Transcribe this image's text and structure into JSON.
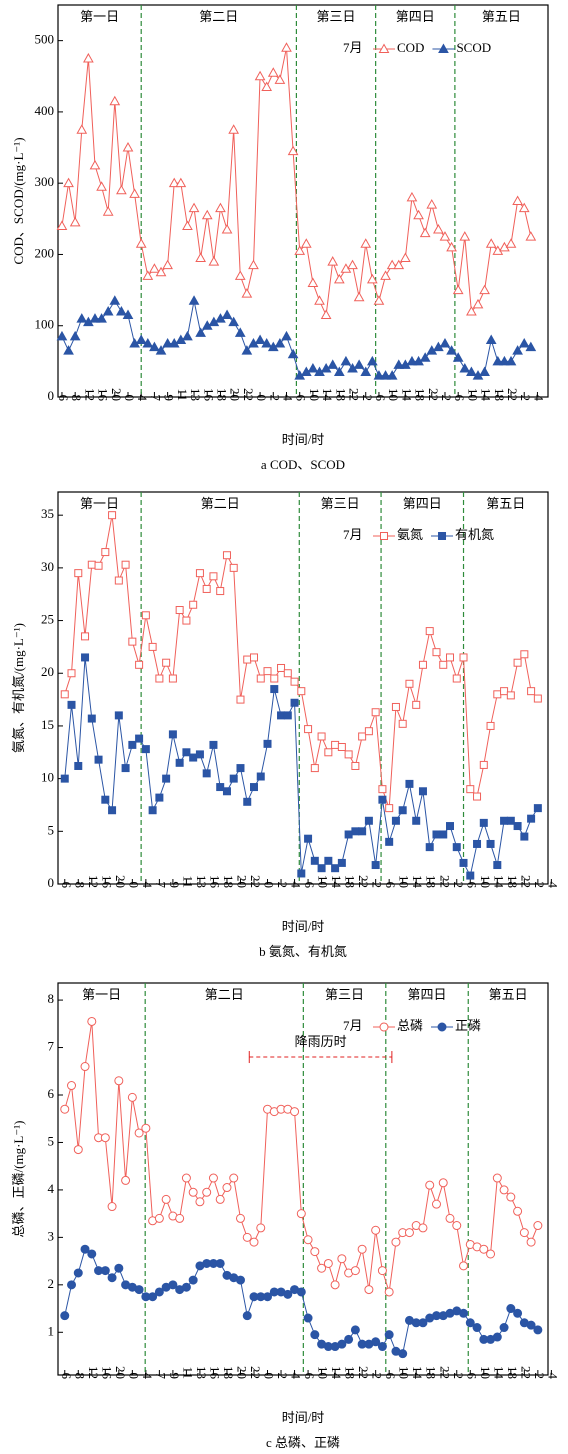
{
  "chart_data": [
    {
      "type": "line",
      "caption": "a COD、SCOD",
      "xlabel": "时间/时",
      "ylabel": "COD、SCOD/(mg·L⁻¹)",
      "legend": "upper right",
      "legend_title": "7月",
      "xlim": [
        -0.6,
        73.6
      ],
      "ylim": [
        0,
        550
      ],
      "yticks": [
        0,
        100,
        200,
        300,
        400,
        500
      ],
      "xticks": [
        {
          "value": 0,
          "label": "6"
        },
        {
          "value": 2,
          "label": "8"
        },
        {
          "value": 4,
          "label": "12"
        },
        {
          "value": 6,
          "label": "16"
        },
        {
          "value": 8,
          "label": "20"
        },
        {
          "value": 10,
          "label": "0"
        },
        {
          "value": 12,
          "label": "4"
        },
        {
          "value": 14,
          "label": "7"
        },
        {
          "value": 16,
          "label": "9"
        },
        {
          "value": 18,
          "label": "11"
        },
        {
          "value": 20,
          "label": "13"
        },
        {
          "value": 22,
          "label": "16"
        },
        {
          "value": 24,
          "label": "18"
        },
        {
          "value": 26,
          "label": "20"
        },
        {
          "value": 28,
          "label": "22"
        },
        {
          "value": 30,
          "label": "0"
        },
        {
          "value": 32,
          "label": "2"
        },
        {
          "value": 34,
          "label": "4"
        },
        {
          "value": 36,
          "label": "6"
        },
        {
          "value": 38,
          "label": "10"
        },
        {
          "value": 40,
          "label": "14"
        },
        {
          "value": 42,
          "label": "18"
        },
        {
          "value": 44,
          "label": "22"
        },
        {
          "value": 46,
          "label": "2"
        },
        {
          "value": 48,
          "label": "6"
        },
        {
          "value": 50,
          "label": "10"
        },
        {
          "value": 52,
          "label": "14"
        },
        {
          "value": 54,
          "label": "18"
        },
        {
          "value": 56,
          "label": "22"
        },
        {
          "value": 58,
          "label": "2"
        },
        {
          "value": 60,
          "label": "6"
        },
        {
          "value": 62,
          "label": "10"
        },
        {
          "value": 64,
          "label": "14"
        },
        {
          "value": 66,
          "label": "18"
        },
        {
          "value": 68,
          "label": "22"
        },
        {
          "value": 70,
          "label": "2"
        },
        {
          "value": 72,
          "label": "4"
        }
      ],
      "day_dividers": [
        12,
        35.5,
        47.5,
        59.5
      ],
      "day_labels": [
        "第一日",
        "第二日",
        "第三日",
        "第四日",
        "第五日"
      ],
      "series": [
        {
          "name": "COD",
          "color": "#f0605a",
          "marker": "triangle",
          "filled": false,
          "values": [
            240,
            300,
            245,
            375,
            475,
            325,
            295,
            260,
            415,
            290,
            350,
            285,
            215,
            170,
            180,
            175,
            185,
            300,
            300,
            240,
            265,
            195,
            255,
            190,
            265,
            235,
            375,
            170,
            145,
            185,
            450,
            435,
            455,
            445,
            490,
            345,
            205,
            215,
            160,
            135,
            115,
            190,
            165,
            180,
            185,
            140,
            215,
            165,
            135,
            170,
            185,
            185,
            195,
            280,
            255,
            230,
            270,
            235,
            225,
            210,
            150,
            225,
            120,
            130,
            150,
            215,
            205,
            210,
            215,
            275,
            265,
            225
          ]
        },
        {
          "name": "SCOD",
          "color": "#2b55a5",
          "marker": "triangle",
          "filled": true,
          "values": [
            85,
            65,
            85,
            110,
            105,
            110,
            110,
            120,
            135,
            120,
            115,
            75,
            80,
            75,
            70,
            65,
            75,
            75,
            80,
            85,
            135,
            90,
            100,
            105,
            110,
            115,
            105,
            90,
            65,
            75,
            80,
            75,
            70,
            75,
            85,
            60,
            30,
            35,
            40,
            35,
            40,
            45,
            35,
            50,
            40,
            45,
            35,
            50,
            30,
            30,
            30,
            45,
            45,
            50,
            50,
            55,
            65,
            70,
            75,
            65,
            55,
            40,
            35,
            30,
            35,
            80,
            50,
            50,
            50,
            65,
            75,
            70
          ]
        }
      ]
    },
    {
      "type": "line",
      "caption": "b 氨氮、有机氮",
      "xlabel": "时间/时",
      "ylabel": "氨氮、有机氮/(mg·L⁻¹)",
      "legend": "upper right",
      "legend_title": "7月",
      "xlim": [
        -1,
        71.5
      ],
      "ylim": [
        0,
        37.2
      ],
      "yticks": [
        0,
        5,
        10,
        15,
        20,
        25,
        30,
        35
      ],
      "xticks": [
        {
          "value": 0,
          "label": "6"
        },
        {
          "value": 2,
          "label": "8"
        },
        {
          "value": 4,
          "label": "12"
        },
        {
          "value": 6,
          "label": "16"
        },
        {
          "value": 8,
          "label": "20"
        },
        {
          "value": 10,
          "label": "0"
        },
        {
          "value": 12,
          "label": "4"
        },
        {
          "value": 14,
          "label": "7"
        },
        {
          "value": 16,
          "label": "9"
        },
        {
          "value": 18,
          "label": "11"
        },
        {
          "value": 20,
          "label": "13"
        },
        {
          "value": 22,
          "label": "16"
        },
        {
          "value": 24,
          "label": "18"
        },
        {
          "value": 26,
          "label": "20"
        },
        {
          "value": 28,
          "label": "22"
        },
        {
          "value": 30,
          "label": "0"
        },
        {
          "value": 32,
          "label": "2"
        },
        {
          "value": 34,
          "label": "4"
        },
        {
          "value": 36,
          "label": "6"
        },
        {
          "value": 38,
          "label": "10"
        },
        {
          "value": 40,
          "label": "14"
        },
        {
          "value": 42,
          "label": "18"
        },
        {
          "value": 44,
          "label": "22"
        },
        {
          "value": 46,
          "label": "2"
        },
        {
          "value": 48,
          "label": "6"
        },
        {
          "value": 50,
          "label": "10"
        },
        {
          "value": 52,
          "label": "14"
        },
        {
          "value": 54,
          "label": "18"
        },
        {
          "value": 56,
          "label": "22"
        },
        {
          "value": 58,
          "label": "2"
        },
        {
          "value": 60,
          "label": "6"
        },
        {
          "value": 62,
          "label": "10"
        },
        {
          "value": 64,
          "label": "14"
        },
        {
          "value": 66,
          "label": "18"
        },
        {
          "value": 68,
          "label": "22"
        },
        {
          "value": 70,
          "label": "2"
        },
        {
          "value": 72,
          "label": "4"
        }
      ],
      "day_dividers": [
        11.3,
        34.7,
        46.8,
        59
      ],
      "day_labels": [
        "第一日",
        "第二日",
        "第三日",
        "第四日",
        "第五日"
      ],
      "series": [
        {
          "name": "氨氮",
          "color": "#f0605a",
          "marker": "square",
          "filled": false,
          "values": [
            18,
            20,
            29.5,
            23.5,
            30.3,
            30.2,
            31.5,
            35,
            28.8,
            30.3,
            23,
            20.8,
            25.5,
            22.5,
            19.5,
            21,
            19.5,
            26,
            25,
            26.5,
            29.5,
            28,
            29.2,
            27.8,
            31.2,
            30,
            17.5,
            21.3,
            21.5,
            19.5,
            20.2,
            19.5,
            20.5,
            20,
            19.2,
            18.3,
            14.7,
            11,
            14,
            12.5,
            13.2,
            13,
            12.3,
            11.2,
            14,
            14.5,
            16.3,
            9,
            7.2,
            16.8,
            15.2,
            19,
            17,
            20.8,
            24,
            22,
            20.8,
            21.5,
            19.5,
            21.5,
            9,
            8.3,
            11.3,
            15,
            18,
            18.3,
            17.9,
            21,
            21.8,
            18.3,
            17.6
          ]
        },
        {
          "name": "有机氮",
          "color": "#2b55a5",
          "marker": "square",
          "filled": true,
          "values": [
            10,
            17,
            11.2,
            21.5,
            15.7,
            11.8,
            8,
            7,
            16,
            11,
            13.2,
            13.8,
            12.8,
            7,
            8.2,
            10,
            14.2,
            11.5,
            12.5,
            12,
            12.3,
            10.5,
            13.2,
            9.2,
            8.8,
            10,
            11,
            7.8,
            9.2,
            10.2,
            13.3,
            18.5,
            16,
            16,
            17.2,
            1,
            4.3,
            2.2,
            1.5,
            2.2,
            1.5,
            2,
            4.7,
            5,
            5,
            6,
            1.8,
            8,
            4,
            6,
            7,
            9.5,
            6,
            8.8,
            3.5,
            4.7,
            4.7,
            5.5,
            3.5,
            2,
            0.8,
            3.8,
            5.8,
            3.8,
            1.8,
            6,
            6,
            5.5,
            4.5,
            6.2,
            7.2
          ]
        }
      ]
    },
    {
      "type": "line",
      "caption": "c 总磷、正磷",
      "xlabel": "时间/时",
      "ylabel": "总磷、正磷/(mg·L⁻¹)",
      "legend": "upper right",
      "legend_title": "7月",
      "xlim": [
        -1,
        71.5
      ],
      "ylim": [
        0.1,
        8.36
      ],
      "yticks": [
        1,
        2,
        3,
        4,
        5,
        6,
        7,
        8
      ],
      "xticks": [
        {
          "value": 0,
          "label": "6"
        },
        {
          "value": 2,
          "label": "8"
        },
        {
          "value": 4,
          "label": "12"
        },
        {
          "value": 6,
          "label": "16"
        },
        {
          "value": 8,
          "label": "20"
        },
        {
          "value": 10,
          "label": "0"
        },
        {
          "value": 12,
          "label": "4"
        },
        {
          "value": 14,
          "label": "7"
        },
        {
          "value": 16,
          "label": "9"
        },
        {
          "value": 18,
          "label": "11"
        },
        {
          "value": 20,
          "label": "13"
        },
        {
          "value": 22,
          "label": "16"
        },
        {
          "value": 24,
          "label": "18"
        },
        {
          "value": 26,
          "label": "20"
        },
        {
          "value": 28,
          "label": "22"
        },
        {
          "value": 30,
          "label": "0"
        },
        {
          "value": 32,
          "label": "2"
        },
        {
          "value": 34,
          "label": "4"
        },
        {
          "value": 36,
          "label": "6"
        },
        {
          "value": 38,
          "label": "10"
        },
        {
          "value": 40,
          "label": "14"
        },
        {
          "value": 42,
          "label": "18"
        },
        {
          "value": 44,
          "label": "22"
        },
        {
          "value": 46,
          "label": "2"
        },
        {
          "value": 48,
          "label": "6"
        },
        {
          "value": 50,
          "label": "10"
        },
        {
          "value": 52,
          "label": "14"
        },
        {
          "value": 54,
          "label": "18"
        },
        {
          "value": 56,
          "label": "22"
        },
        {
          "value": 58,
          "label": "2"
        },
        {
          "value": 60,
          "label": "6"
        },
        {
          "value": 62,
          "label": "10"
        },
        {
          "value": 64,
          "label": "14"
        },
        {
          "value": 66,
          "label": "18"
        },
        {
          "value": 68,
          "label": "22"
        },
        {
          "value": 70,
          "label": "2"
        },
        {
          "value": 72,
          "label": "4"
        }
      ],
      "day_dividers": [
        11.9,
        35.3,
        47.5,
        59.7
      ],
      "day_labels": [
        "第一日",
        "第二日",
        "第三日",
        "第四日",
        "第五日"
      ],
      "annotation": {
        "text": "降雨历时",
        "x": [
          27.3,
          48.4
        ],
        "y": 6.8
      },
      "series": [
        {
          "name": "总磷",
          "color": "#f0605a",
          "marker": "circle",
          "filled": false,
          "values": [
            5.7,
            6.2,
            4.85,
            6.6,
            7.55,
            5.1,
            5.1,
            3.65,
            6.3,
            4.2,
            5.95,
            5.2,
            5.3,
            3.35,
            3.4,
            3.8,
            3.45,
            3.4,
            4.25,
            3.95,
            3.75,
            3.95,
            4.25,
            3.8,
            4.05,
            4.25,
            3.4,
            3.0,
            2.9,
            3.2,
            5.7,
            5.65,
            5.7,
            5.7,
            5.65,
            3.5,
            2.95,
            2.7,
            2.35,
            2.45,
            2.0,
            2.55,
            2.25,
            2.3,
            2.75,
            1.9,
            3.15,
            2.3,
            1.85,
            2.9,
            3.1,
            3.1,
            3.25,
            3.2,
            4.1,
            3.7,
            4.15,
            3.4,
            3.25,
            2.4,
            2.85,
            2.8,
            2.75,
            2.65,
            4.25,
            4.0,
            3.85,
            3.55,
            3.1,
            2.9,
            3.25
          ]
        },
        {
          "name": "正磷",
          "color": "#2b55a5",
          "marker": "circle",
          "filled": true,
          "values": [
            1.35,
            2.0,
            2.25,
            2.75,
            2.65,
            2.3,
            2.3,
            2.15,
            2.35,
            2.0,
            1.95,
            1.9,
            1.75,
            1.75,
            1.85,
            1.95,
            2.0,
            1.9,
            1.95,
            2.1,
            2.4,
            2.45,
            2.45,
            2.45,
            2.2,
            2.15,
            2.1,
            1.35,
            1.75,
            1.75,
            1.75,
            1.85,
            1.85,
            1.8,
            1.9,
            1.85,
            1.3,
            0.95,
            0.75,
            0.7,
            0.7,
            0.75,
            0.85,
            1.05,
            0.75,
            0.75,
            0.8,
            0.7,
            0.95,
            0.6,
            0.55,
            1.25,
            1.2,
            1.2,
            1.3,
            1.35,
            1.35,
            1.4,
            1.45,
            1.4,
            1.2,
            1.1,
            0.85,
            0.85,
            0.9,
            1.1,
            1.5,
            1.4,
            1.2,
            1.15,
            1.05
          ]
        }
      ]
    }
  ]
}
